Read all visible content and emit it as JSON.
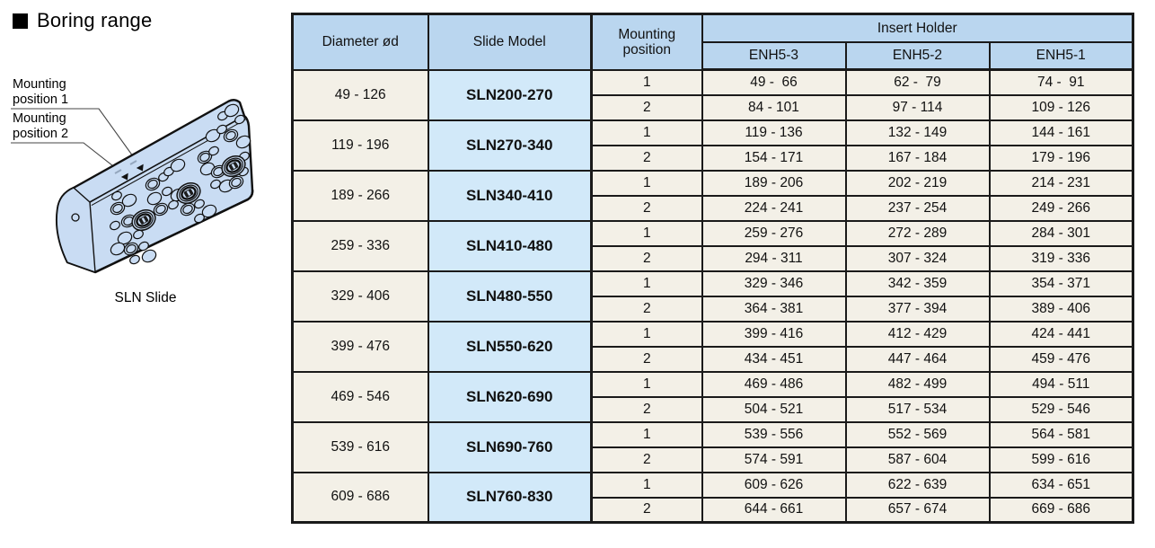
{
  "title": "Boring range",
  "illustration": {
    "label_position_1": "Mounting position 1",
    "label_position_2": "Mounting position 2",
    "caption": "SLN Slide"
  },
  "colors": {
    "header_bg": "#bad6ef",
    "model_bg": "#d2e9f9",
    "row_bg": "#f3f0e7",
    "border_dark": "#1a1a1a",
    "line_gray": "#8f8f8f",
    "illustration_fill": "#c9dcf3"
  },
  "table": {
    "headers": {
      "diameter": "Diameter ød",
      "slide_model": "Slide Model",
      "mounting_position": "Mounting position",
      "insert_holder": "Insert Holder",
      "holders": [
        "ENH5-3",
        "ENH5-2",
        "ENH5-1"
      ]
    },
    "groups": [
      {
        "diameter": "49 - 126",
        "model": "SLN200-270",
        "rows": [
          {
            "position": "1",
            "values": [
              "49 -  66",
              "62 -  79",
              "74 -  91"
            ]
          },
          {
            "position": "2",
            "values": [
              "84 - 101",
              "97 - 114",
              "109 - 126"
            ]
          }
        ]
      },
      {
        "diameter": "119 - 196",
        "model": "SLN270-340",
        "rows": [
          {
            "position": "1",
            "values": [
              "119 - 136",
              "132 - 149",
              "144 - 161"
            ]
          },
          {
            "position": "2",
            "values": [
              "154 - 171",
              "167 - 184",
              "179 - 196"
            ]
          }
        ]
      },
      {
        "diameter": "189 - 266",
        "model": "SLN340-410",
        "rows": [
          {
            "position": "1",
            "values": [
              "189 - 206",
              "202 - 219",
              "214 - 231"
            ]
          },
          {
            "position": "2",
            "values": [
              "224 - 241",
              "237 - 254",
              "249 - 266"
            ]
          }
        ]
      },
      {
        "diameter": "259 - 336",
        "model": "SLN410-480",
        "rows": [
          {
            "position": "1",
            "values": [
              "259 - 276",
              "272 - 289",
              "284 - 301"
            ]
          },
          {
            "position": "2",
            "values": [
              "294 - 311",
              "307 - 324",
              "319 - 336"
            ]
          }
        ]
      },
      {
        "diameter": "329 - 406",
        "model": "SLN480-550",
        "rows": [
          {
            "position": "1",
            "values": [
              "329 - 346",
              "342 - 359",
              "354 - 371"
            ]
          },
          {
            "position": "2",
            "values": [
              "364 - 381",
              "377 - 394",
              "389 - 406"
            ]
          }
        ]
      },
      {
        "diameter": "399 - 476",
        "model": "SLN550-620",
        "rows": [
          {
            "position": "1",
            "values": [
              "399 - 416",
              "412 - 429",
              "424 - 441"
            ]
          },
          {
            "position": "2",
            "values": [
              "434 - 451",
              "447 - 464",
              "459 - 476"
            ]
          }
        ]
      },
      {
        "diameter": "469 - 546",
        "model": "SLN620-690",
        "rows": [
          {
            "position": "1",
            "values": [
              "469 - 486",
              "482 - 499",
              "494 - 511"
            ]
          },
          {
            "position": "2",
            "values": [
              "504 - 521",
              "517 - 534",
              "529 - 546"
            ]
          }
        ]
      },
      {
        "diameter": "539 - 616",
        "model": "SLN690-760",
        "rows": [
          {
            "position": "1",
            "values": [
              "539 - 556",
              "552 - 569",
              "564 - 581"
            ]
          },
          {
            "position": "2",
            "values": [
              "574 - 591",
              "587 - 604",
              "599 - 616"
            ]
          }
        ]
      },
      {
        "diameter": "609 - 686",
        "model": "SLN760-830",
        "rows": [
          {
            "position": "1",
            "values": [
              "609 - 626",
              "622 - 639",
              "634 - 651"
            ]
          },
          {
            "position": "2",
            "values": [
              "644 - 661",
              "657 - 674",
              "669 - 686"
            ]
          }
        ]
      }
    ]
  }
}
